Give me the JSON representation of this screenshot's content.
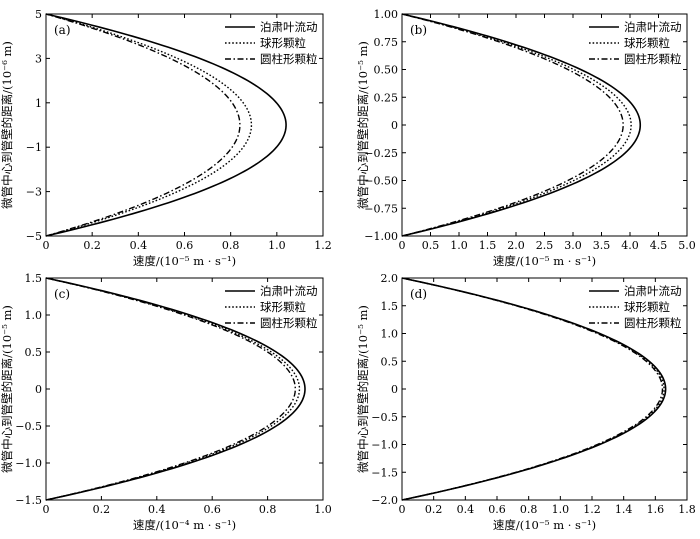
{
  "chart_data": [
    {
      "type": "line",
      "panel_label": "(a)",
      "xlabel": "速度/(10⁻⁵ m · s⁻¹)",
      "ylabel": "微管中心到管壁的距离/(10⁻⁶ m)",
      "xlim": [
        0,
        1.2
      ],
      "ylim": [
        -5,
        5
      ],
      "xticks": [
        0,
        0.2,
        0.4,
        0.6,
        0.8,
        1.0,
        1.2
      ],
      "xtick_labels": [
        "0",
        "0.2",
        "0.4",
        "0.6",
        "0.8",
        "1.0",
        "1.2"
      ],
      "yticks": [
        -5,
        -3,
        -1,
        1,
        3,
        5
      ],
      "ytick_labels": [
        "−5",
        "−3",
        "−1",
        "1",
        "3",
        "5"
      ],
      "legend_position": "top-right",
      "series": [
        {
          "name": "泊肃叶流动",
          "style": "solid",
          "peak": 1.04
        },
        {
          "name": "球形颗粒",
          "style": "dotted",
          "peak": 0.89
        },
        {
          "name": "圆柱形颗粒",
          "style": "dashdot",
          "peak": 0.84
        }
      ]
    },
    {
      "type": "line",
      "panel_label": "(b)",
      "xlabel": "速度/(10⁻⁵ m · s⁻¹)",
      "ylabel": "微管中心到管壁的距离/(10⁻⁵ m)",
      "xlim": [
        0,
        5.0
      ],
      "ylim": [
        -1,
        1
      ],
      "xticks": [
        0,
        0.5,
        1.0,
        1.5,
        2.0,
        2.5,
        3.0,
        3.5,
        4.0,
        4.5,
        5.0
      ],
      "xtick_labels": [
        "0",
        "0.5",
        "1.0",
        "1.5",
        "2.0",
        "2.5",
        "3.0",
        "3.5",
        "4.0",
        "4.5",
        "5.0"
      ],
      "yticks": [
        -1,
        -0.75,
        -0.5,
        -0.25,
        0,
        0.25,
        0.5,
        0.75,
        1
      ],
      "ytick_labels": [
        "−1.00",
        "−0.75",
        "−0.50",
        "−0.25",
        "0",
        "0.25",
        "0.50",
        "0.75",
        "1.00"
      ],
      "legend_position": "top-right",
      "series": [
        {
          "name": "泊肃叶流动",
          "style": "solid",
          "peak": 4.18
        },
        {
          "name": "球形颗粒",
          "style": "dotted",
          "peak": 4.02
        },
        {
          "name": "圆柱形颗粒",
          "style": "dashdot",
          "peak": 3.88
        }
      ]
    },
    {
      "type": "line",
      "panel_label": "(c)",
      "xlabel": "速度/(10⁻⁴ m · s⁻¹)",
      "ylabel": "微管中心到管壁的距离/(10⁻⁵ m)",
      "xlim": [
        0,
        1.0
      ],
      "ylim": [
        -1.5,
        1.5
      ],
      "xticks": [
        0,
        0.2,
        0.4,
        0.6,
        0.8,
        1.0
      ],
      "xtick_labels": [
        "0",
        "0.2",
        "0.4",
        "0.6",
        "0.8",
        "1.0"
      ],
      "yticks": [
        -1.5,
        -1.0,
        -0.5,
        0,
        0.5,
        1.0,
        1.5
      ],
      "ytick_labels": [
        "−1.5",
        "−1.0",
        "−0.5",
        "0",
        "0.5",
        "1.0",
        "1.5"
      ],
      "legend_position": "top-right",
      "series": [
        {
          "name": "泊肃叶流动",
          "style": "solid",
          "peak": 0.935
        },
        {
          "name": "球形颗粒",
          "style": "dotted",
          "peak": 0.915
        },
        {
          "name": "圆柱形颗粒",
          "style": "dashdot",
          "peak": 0.9
        }
      ]
    },
    {
      "type": "line",
      "panel_label": "(d)",
      "xlabel": "速度/(10⁻⁵ m · s⁻¹)",
      "ylabel": "微管中心到管壁的距离/(10⁻⁵ m)",
      "xlim": [
        0,
        1.8
      ],
      "ylim": [
        -2.0,
        2.0
      ],
      "xticks": [
        0,
        0.2,
        0.4,
        0.6,
        0.8,
        1.0,
        1.2,
        1.4,
        1.6,
        1.8
      ],
      "xtick_labels": [
        "0",
        "0.2",
        "0.4",
        "0.6",
        "0.8",
        "1.0",
        "1.2",
        "1.4",
        "1.6",
        "1.8"
      ],
      "yticks": [
        -2.0,
        -1.5,
        -1.0,
        -0.5,
        0,
        0.5,
        1.0,
        1.5,
        2.0
      ],
      "ytick_labels": [
        "−2.0",
        "−1.5",
        "−1.0",
        "−0.5",
        "0",
        "0.5",
        "1.0",
        "1.5",
        "2.0"
      ],
      "legend_position": "top-right",
      "series": [
        {
          "name": "泊肃叶流动",
          "style": "solid",
          "peak": 1.665
        },
        {
          "name": "球形颗粒",
          "style": "dotted",
          "peak": 1.655
        },
        {
          "name": "圆柱形颗粒",
          "style": "dashdot",
          "peak": 1.645
        }
      ]
    }
  ]
}
